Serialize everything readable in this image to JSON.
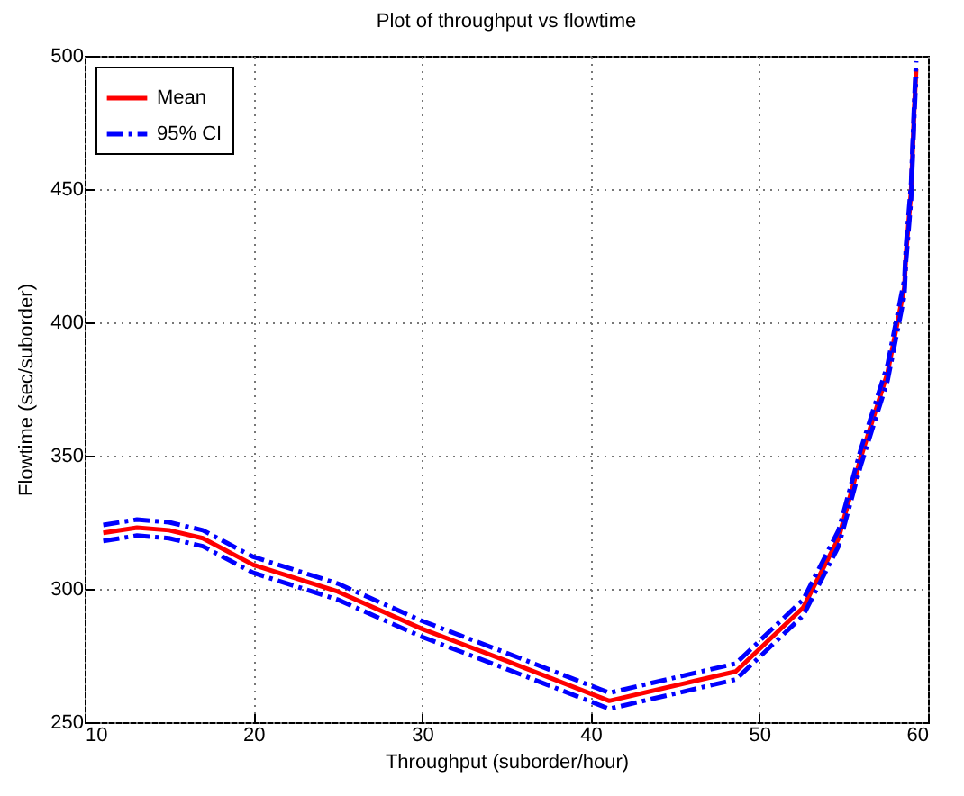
{
  "chart_data": {
    "type": "line",
    "title": "Plot of throughput vs flowtime",
    "xlabel": "Throughput (suborder/hour)",
    "ylabel": "Flowtime (sec/suborder)",
    "xlim": [
      10,
      60
    ],
    "xticks": [
      10,
      20,
      30,
      40,
      50,
      60
    ],
    "ylim": [
      250,
      500
    ],
    "yticks": [
      250,
      300,
      350,
      400,
      450,
      500
    ],
    "grid": true,
    "legend": "top left",
    "series": [
      {
        "name": "Mean",
        "color": "#ff0000",
        "line_style": "solid",
        "x": [
          11.1,
          13.1,
          15,
          17,
          20,
          25,
          30,
          35,
          41.1,
          48.6,
          52.6,
          54.7,
          56.0,
          57.6,
          58.6,
          58.7,
          59.0,
          59.2,
          59.3
        ],
        "values": [
          321,
          323,
          322,
          319,
          309,
          299,
          285,
          273,
          258,
          269,
          293,
          319,
          349,
          381,
          413,
          426,
          449,
          482,
          495
        ]
      },
      {
        "name": "95% CI",
        "color": "#0000ff",
        "line_style": "dashed",
        "x": [
          11.1,
          13.1,
          15,
          17,
          20,
          25,
          30,
          35,
          41.1,
          48.6,
          52.6,
          54.7,
          56.0,
          57.6,
          58.6,
          58.7,
          59.0,
          59.2,
          59.3
        ],
        "values": [
          324,
          326,
          325,
          322,
          312,
          302,
          288,
          276,
          261,
          272,
          296,
          322,
          352,
          384,
          416,
          429,
          452,
          485,
          498
        ]
      },
      {
        "color": "#0000ff",
        "line_style": "dashed",
        "x": [
          11.1,
          13.1,
          15,
          17,
          20,
          25,
          30,
          35,
          41.1,
          48.6,
          52.6,
          54.7,
          56.0,
          57.6,
          58.6,
          58.7,
          59.0,
          59.2,
          59.3
        ],
        "values": [
          318,
          320,
          319,
          316,
          306,
          296,
          282,
          270,
          255,
          266,
          290,
          316,
          346,
          378,
          410,
          423,
          446,
          479,
          492
        ]
      }
    ]
  }
}
